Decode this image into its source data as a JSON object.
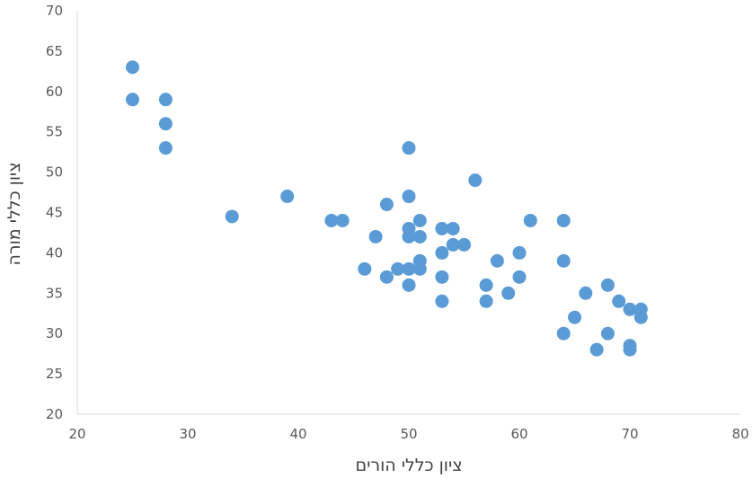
{
  "chart_data": {
    "type": "scatter",
    "xlabel": "ציון כללי הורים",
    "ylabel": "ציון כללי מורה",
    "xlim": [
      20,
      80
    ],
    "ylim": [
      20,
      70
    ],
    "x_ticks": [
      "20",
      "30",
      "40",
      "50",
      "60",
      "70",
      "80"
    ],
    "y_ticks": [
      "20",
      "25",
      "30",
      "35",
      "40",
      "45",
      "50",
      "55",
      "60",
      "65",
      "70"
    ],
    "grid": false,
    "marker_color": "#5B9BD5",
    "axis_color": "#D9D9D9",
    "points": [
      {
        "x": 25,
        "y": 63
      },
      {
        "x": 25,
        "y": 59
      },
      {
        "x": 28,
        "y": 59
      },
      {
        "x": 28,
        "y": 56
      },
      {
        "x": 28,
        "y": 53
      },
      {
        "x": 34,
        "y": 44.5
      },
      {
        "x": 39,
        "y": 47
      },
      {
        "x": 43,
        "y": 44
      },
      {
        "x": 44,
        "y": 44
      },
      {
        "x": 46,
        "y": 38
      },
      {
        "x": 47,
        "y": 42
      },
      {
        "x": 48,
        "y": 46
      },
      {
        "x": 48,
        "y": 37
      },
      {
        "x": 49,
        "y": 38
      },
      {
        "x": 50,
        "y": 53
      },
      {
        "x": 50,
        "y": 47
      },
      {
        "x": 50,
        "y": 43
      },
      {
        "x": 50,
        "y": 42
      },
      {
        "x": 50,
        "y": 38
      },
      {
        "x": 50,
        "y": 36
      },
      {
        "x": 51,
        "y": 44
      },
      {
        "x": 51,
        "y": 42
      },
      {
        "x": 51,
        "y": 39
      },
      {
        "x": 51,
        "y": 38
      },
      {
        "x": 53,
        "y": 43
      },
      {
        "x": 53,
        "y": 40
      },
      {
        "x": 53,
        "y": 37
      },
      {
        "x": 53,
        "y": 34
      },
      {
        "x": 54,
        "y": 43
      },
      {
        "x": 54,
        "y": 41
      },
      {
        "x": 55,
        "y": 41
      },
      {
        "x": 56,
        "y": 49
      },
      {
        "x": 57,
        "y": 36
      },
      {
        "x": 57,
        "y": 34
      },
      {
        "x": 58,
        "y": 39
      },
      {
        "x": 59,
        "y": 35
      },
      {
        "x": 60,
        "y": 40
      },
      {
        "x": 60,
        "y": 37
      },
      {
        "x": 61,
        "y": 44
      },
      {
        "x": 64,
        "y": 44
      },
      {
        "x": 64,
        "y": 39
      },
      {
        "x": 64,
        "y": 30
      },
      {
        "x": 65,
        "y": 32
      },
      {
        "x": 66,
        "y": 35
      },
      {
        "x": 67,
        "y": 28
      },
      {
        "x": 68,
        "y": 36
      },
      {
        "x": 68,
        "y": 30
      },
      {
        "x": 69,
        "y": 34
      },
      {
        "x": 70,
        "y": 33
      },
      {
        "x": 70,
        "y": 28.5
      },
      {
        "x": 70,
        "y": 28
      },
      {
        "x": 71,
        "y": 33
      },
      {
        "x": 71,
        "y": 32
      }
    ]
  }
}
